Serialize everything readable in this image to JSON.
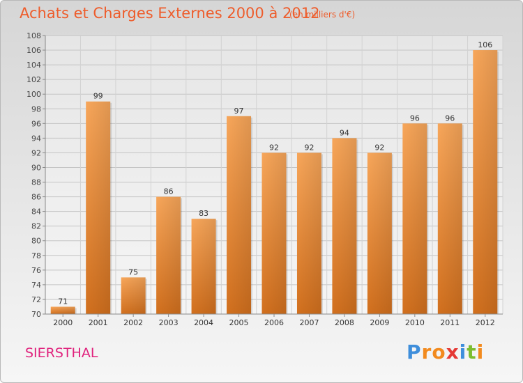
{
  "header": {
    "title": "Achats et Charges Externes 2000 à 2012",
    "unit": "(en milliers d'€)"
  },
  "footer": {
    "commune": "SIERSTHAL",
    "brand_letters": [
      "P",
      "r",
      "o",
      "x",
      "i",
      "t",
      "i"
    ]
  },
  "colors": {
    "title": "#ee5c2b",
    "commune": "#e0217c",
    "bar_light": "#f7a65a",
    "bar_dark": "#d2701e",
    "brand": [
      "#3e8edb",
      "#f28a1e",
      "#f28a1e",
      "#e53935",
      "#3e8edb",
      "#7cbd2f",
      "#f28a1e"
    ]
  },
  "chart_data": {
    "type": "bar",
    "categories": [
      "2000",
      "2001",
      "2002",
      "2003",
      "2004",
      "2005",
      "2006",
      "2007",
      "2008",
      "2009",
      "2010",
      "2011",
      "2012"
    ],
    "values": [
      71,
      99,
      75,
      86,
      83,
      97,
      92,
      92,
      94,
      92,
      96,
      96,
      106
    ],
    "title": "Achats et Charges Externes 2000 à 2012",
    "xlabel": "",
    "ylabel": "",
    "ylim": [
      70,
      108
    ],
    "yticks": [
      70,
      72,
      74,
      76,
      78,
      80,
      82,
      84,
      86,
      88,
      90,
      92,
      94,
      96,
      98,
      100,
      102,
      104,
      106,
      108
    ],
    "grid": true,
    "legend": "none"
  }
}
